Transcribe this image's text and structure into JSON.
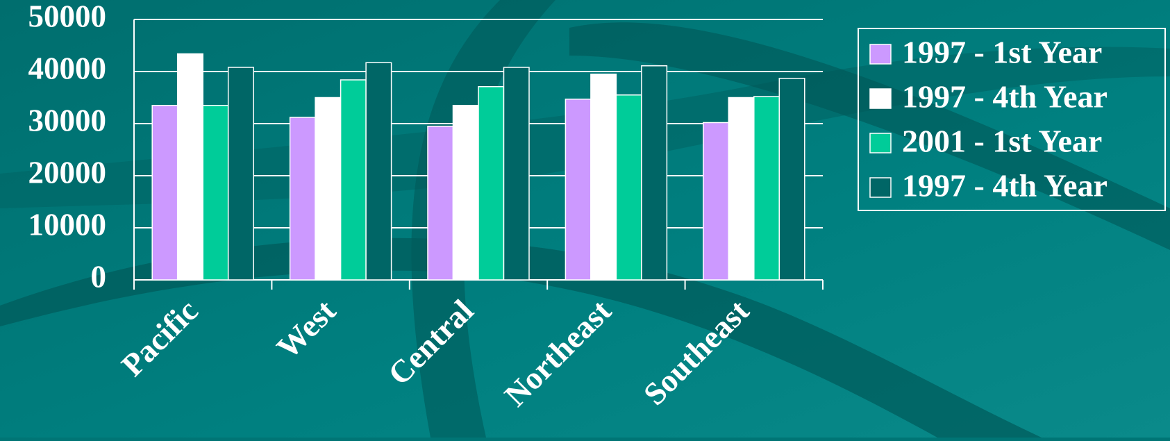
{
  "chart_data": {
    "type": "bar",
    "categories": [
      "Pacific",
      "West",
      "Central",
      "Northeast",
      "Southeast"
    ],
    "series": [
      {
        "name": "1997 - 1st Year",
        "color": "#cc99ff",
        "values": [
          33500,
          31200,
          29500,
          34700,
          30200
        ]
      },
      {
        "name": "1997 - 4th Year",
        "color": "#ffffff",
        "values": [
          43400,
          35000,
          33500,
          39500,
          35000
        ]
      },
      {
        "name": "2001 - 1st Year",
        "color": "#00cc99",
        "values": [
          33500,
          38400,
          37100,
          35500,
          35200
        ]
      },
      {
        "name": "1997 - 4th Year",
        "color": "#006666",
        "values": [
          40800,
          41700,
          40800,
          41100,
          38700
        ]
      }
    ],
    "ylim": [
      0,
      50000
    ],
    "yticks": [
      0,
      10000,
      20000,
      30000,
      40000,
      50000
    ],
    "grid": true
  }
}
